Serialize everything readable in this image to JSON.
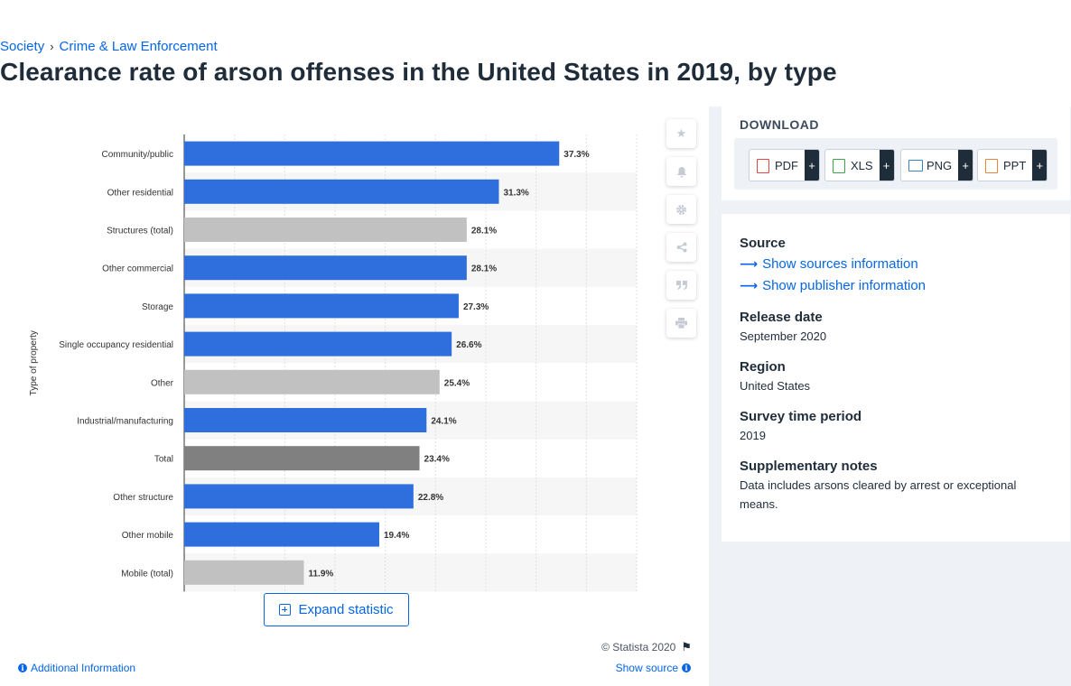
{
  "breadcrumb": {
    "items": [
      "Society",
      "Crime & Law Enforcement"
    ],
    "separator": "›"
  },
  "page_title": "Clearance rate of arson offenses in the United States in 2019, by type",
  "chart_data": {
    "type": "bar",
    "orientation": "horizontal",
    "ylabel": "Type of property",
    "xlim": [
      0,
      45
    ],
    "grid": true,
    "categories": [
      "Community/public",
      "Other residential",
      "Structures (total)",
      "Other commercial",
      "Storage",
      "Single occupancy residential",
      "Other",
      "Industrial/manufacturing",
      "Total",
      "Other structure",
      "Other mobile",
      "Mobile (total)"
    ],
    "values": [
      37.3,
      31.3,
      28.1,
      28.1,
      27.3,
      26.6,
      25.4,
      24.1,
      23.4,
      22.8,
      19.4,
      11.9
    ],
    "value_labels": [
      "37.3%",
      "31.3%",
      "28.1%",
      "28.1%",
      "27.3%",
      "26.6%",
      "25.4%",
      "24.1%",
      "23.4%",
      "22.8%",
      "19.4%",
      "11.9%"
    ],
    "bar_kinds": [
      "type",
      "type",
      "subtotal",
      "type",
      "type",
      "type",
      "subtotal",
      "type",
      "total",
      "type",
      "type",
      "subtotal"
    ],
    "colors": {
      "type": "#2f6fdd",
      "subtotal": "#c1c1c1",
      "total": "#808080"
    }
  },
  "chart_card": {
    "expand_label": "Expand statistic",
    "copyright": "© Statista 2020",
    "additional_info": "Additional Information",
    "show_source": "Show source"
  },
  "tools": [
    "star-icon",
    "bell-icon",
    "gear-icon",
    "share-icon",
    "quote-icon",
    "print-icon"
  ],
  "download": {
    "title": "DOWNLOAD",
    "buttons": [
      {
        "label": "PDF",
        "color": "#e04848"
      },
      {
        "label": "XLS",
        "color": "#3fa34d"
      },
      {
        "label": "PNG",
        "color": "#3b82c4"
      },
      {
        "label": "PPT",
        "color": "#e8833a"
      }
    ],
    "plus": "+"
  },
  "meta": {
    "source_heading": "Source",
    "sources_link": "Show sources information",
    "publisher_link": "Show publisher information",
    "release_heading": "Release date",
    "release_value": "September 2020",
    "region_heading": "Region",
    "region_value": "United States",
    "period_heading": "Survey time period",
    "period_value": "2019",
    "notes_heading": "Supplementary notes",
    "notes_value": "Data includes arsons cleared by arrest or exceptional means."
  }
}
